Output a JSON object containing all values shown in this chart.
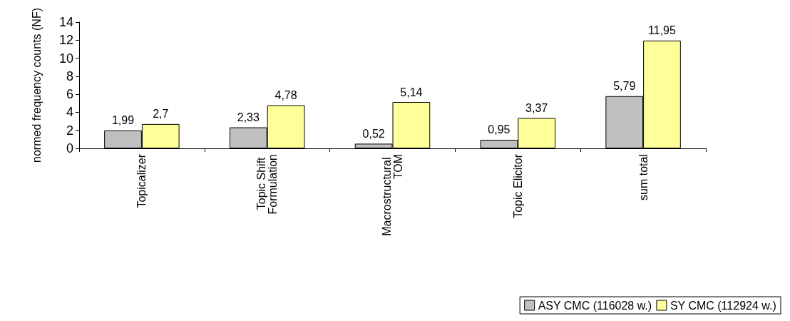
{
  "chart_data": {
    "type": "bar",
    "ylabel": "normed frequency counts (NF)",
    "categories": [
      "Topicalizer",
      "Topic Shift Formulation",
      "Macrostructural TOM",
      "Topic Elicitor",
      "sum total"
    ],
    "series": [
      {
        "name": "ASY CMC (116028 w.)",
        "color": "#c0c0c0",
        "values": [
          1.99,
          2.33,
          0.52,
          0.95,
          5.79
        ],
        "value_labels": [
          "1,99",
          "2,33",
          "0,52",
          "0,95",
          "5,79"
        ]
      },
      {
        "name": "SY CMC (112924 w.)",
        "color": "#ffff99",
        "values": [
          2.7,
          4.78,
          5.14,
          3.37,
          11.95
        ],
        "value_labels": [
          "2,7",
          "4,78",
          "5,14",
          "3,37",
          "11,95"
        ]
      }
    ],
    "ylim": [
      0,
      14
    ],
    "yticks": [
      0,
      2,
      4,
      6,
      8,
      10,
      12,
      14
    ],
    "grid": false,
    "legend": "bottom right"
  }
}
